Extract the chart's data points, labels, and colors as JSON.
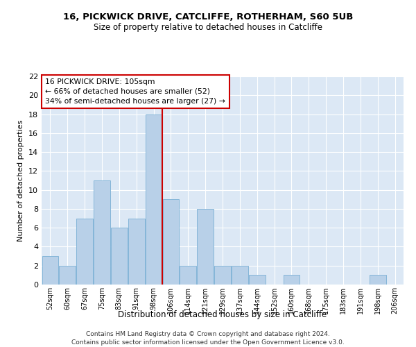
{
  "title1": "16, PICKWICK DRIVE, CATCLIFFE, ROTHERHAM, S60 5UB",
  "title2": "Size of property relative to detached houses in Catcliffe",
  "xlabel": "Distribution of detached houses by size in Catcliffe",
  "ylabel": "Number of detached properties",
  "categories": [
    "52sqm",
    "60sqm",
    "67sqm",
    "75sqm",
    "83sqm",
    "91sqm",
    "98sqm",
    "106sqm",
    "114sqm",
    "121sqm",
    "129sqm",
    "137sqm",
    "144sqm",
    "152sqm",
    "160sqm",
    "168sqm",
    "175sqm",
    "183sqm",
    "191sqm",
    "198sqm",
    "206sqm"
  ],
  "values": [
    3,
    2,
    7,
    11,
    6,
    7,
    18,
    9,
    2,
    8,
    2,
    2,
    1,
    0,
    1,
    0,
    0,
    0,
    0,
    1,
    0
  ],
  "bar_color": "#b8d0e8",
  "bar_edge_color": "#7aafd4",
  "vline_color": "#cc0000",
  "annotation_title": "16 PICKWICK DRIVE: 105sqm",
  "annotation_line1": "← 66% of detached houses are smaller (52)",
  "annotation_line2": "34% of semi-detached houses are larger (27) →",
  "annotation_box_color": "#cc0000",
  "ylim": [
    0,
    22
  ],
  "yticks": [
    0,
    2,
    4,
    6,
    8,
    10,
    12,
    14,
    16,
    18,
    20,
    22
  ],
  "bg_color": "#dce8f5",
  "grid_color": "#ffffff",
  "footer1": "Contains HM Land Registry data © Crown copyright and database right 2024.",
  "footer2": "Contains public sector information licensed under the Open Government Licence v3.0."
}
